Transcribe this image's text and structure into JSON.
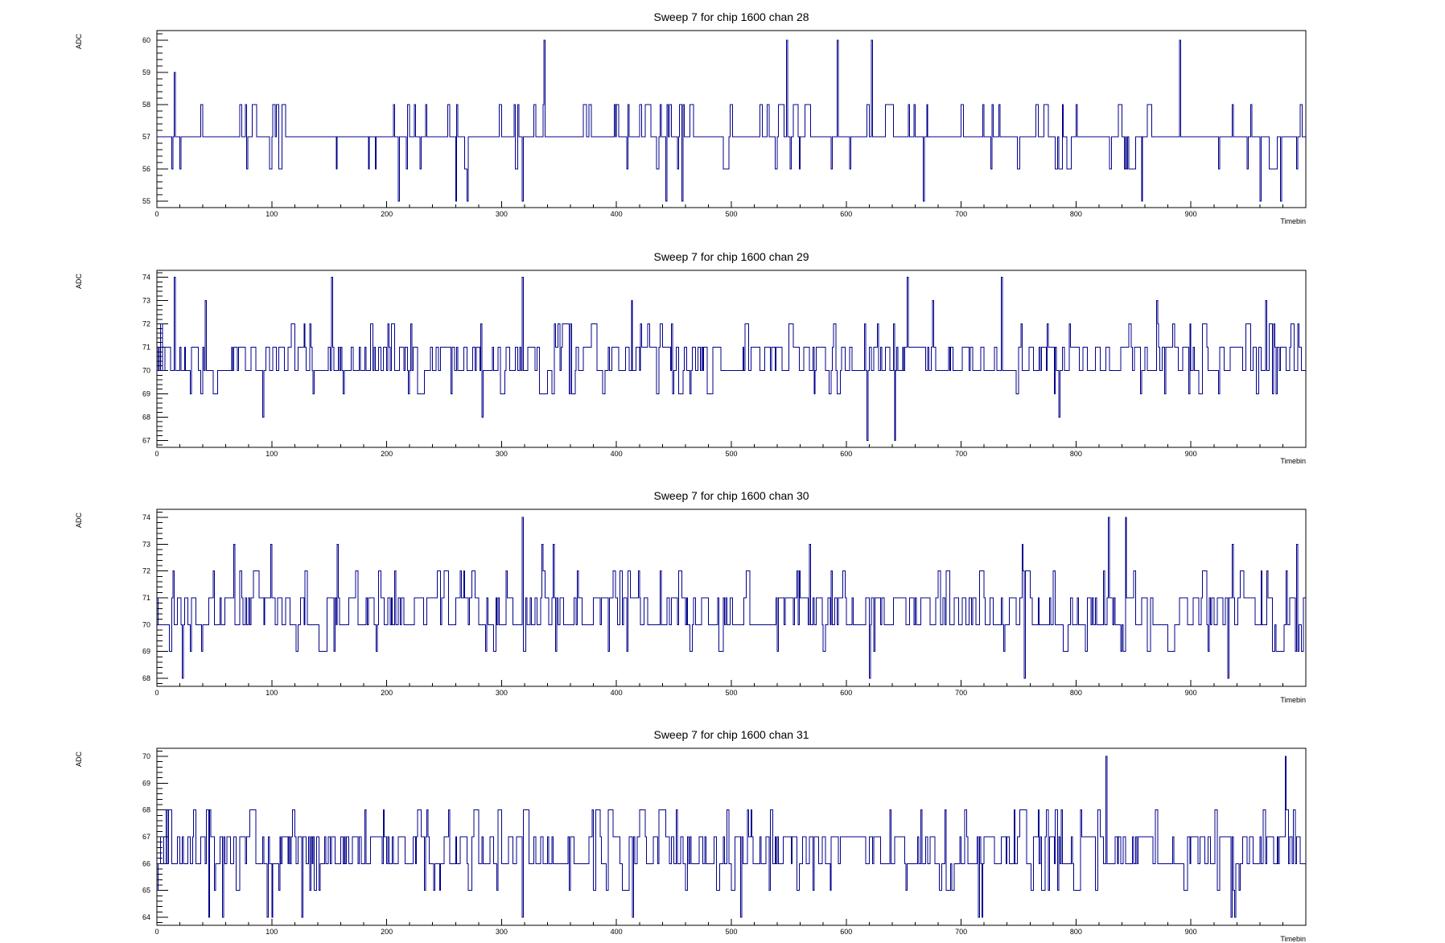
{
  "chart_data": [
    {
      "type": "line",
      "title": "Sweep 7 for chip 1600 chan 28",
      "xlabel": "Timebin",
      "ylabel": "ADC",
      "xlim": [
        0,
        1000
      ],
      "ylim": [
        54.8,
        60.3
      ],
      "x_ticks": [
        0,
        100,
        200,
        300,
        400,
        500,
        600,
        700,
        800,
        900
      ],
      "y_ticks": [
        55,
        56,
        57,
        58,
        59,
        60
      ],
      "baseline": 57,
      "range": [
        55,
        60
      ],
      "spikes": [
        {
          "x": 337,
          "y": 60
        },
        {
          "x": 548,
          "y": 60
        },
        {
          "x": 592,
          "y": 60
        },
        {
          "x": 622,
          "y": 60
        },
        {
          "x": 890,
          "y": 60
        },
        {
          "x": 15,
          "y": 59
        },
        {
          "x": 210,
          "y": 55
        },
        {
          "x": 260,
          "y": 55
        },
        {
          "x": 270,
          "y": 55
        },
        {
          "x": 318,
          "y": 55
        },
        {
          "x": 443,
          "y": 55
        },
        {
          "x": 457,
          "y": 55
        },
        {
          "x": 667,
          "y": 55
        },
        {
          "x": 857,
          "y": 55
        },
        {
          "x": 960,
          "y": 55
        },
        {
          "x": 978,
          "y": 55
        }
      ],
      "series": [
        {
          "color": "#00008b",
          "seed": 28
        }
      ],
      "grid": false
    },
    {
      "type": "line",
      "title": "Sweep 7 for chip 1600 chan 29",
      "xlabel": "Timebin",
      "ylabel": "ADC",
      "xlim": [
        0,
        1000
      ],
      "ylim": [
        66.7,
        74.3
      ],
      "x_ticks": [
        0,
        100,
        200,
        300,
        400,
        500,
        600,
        700,
        800,
        900
      ],
      "y_ticks": [
        67,
        68,
        69,
        70,
        71,
        72,
        73,
        74
      ],
      "baseline": 70.6,
      "range": [
        68,
        72
      ],
      "spikes": [
        {
          "x": 15,
          "y": 74
        },
        {
          "x": 152,
          "y": 74
        },
        {
          "x": 318,
          "y": 74
        },
        {
          "x": 653,
          "y": 74
        },
        {
          "x": 735,
          "y": 74
        },
        {
          "x": 42,
          "y": 73
        },
        {
          "x": 413,
          "y": 73
        },
        {
          "x": 675,
          "y": 73
        },
        {
          "x": 870,
          "y": 73
        },
        {
          "x": 965,
          "y": 73
        },
        {
          "x": 618,
          "y": 67
        },
        {
          "x": 642,
          "y": 67
        },
        {
          "x": 92,
          "y": 68
        },
        {
          "x": 283,
          "y": 68
        },
        {
          "x": 785,
          "y": 68
        }
      ],
      "series": [
        {
          "color": "#00008b",
          "seed": 29
        }
      ],
      "grid": false
    },
    {
      "type": "line",
      "title": "Sweep 7 for chip 1600 chan 30",
      "xlabel": "Timebin",
      "ylabel": "ADC",
      "xlim": [
        0,
        1000
      ],
      "ylim": [
        67.7,
        74.3
      ],
      "x_ticks": [
        0,
        100,
        200,
        300,
        400,
        500,
        600,
        700,
        800,
        900
      ],
      "y_ticks": [
        68,
        69,
        70,
        71,
        72,
        73,
        74
      ],
      "baseline": 70.6,
      "range": [
        69,
        72
      ],
      "spikes": [
        {
          "x": 318,
          "y": 74
        },
        {
          "x": 828,
          "y": 74
        },
        {
          "x": 843,
          "y": 74
        },
        {
          "x": 67,
          "y": 73
        },
        {
          "x": 99,
          "y": 73
        },
        {
          "x": 157,
          "y": 73
        },
        {
          "x": 335,
          "y": 73
        },
        {
          "x": 345,
          "y": 73
        },
        {
          "x": 568,
          "y": 73
        },
        {
          "x": 753,
          "y": 73
        },
        {
          "x": 936,
          "y": 73
        },
        {
          "x": 992,
          "y": 73
        },
        {
          "x": 22,
          "y": 68
        },
        {
          "x": 620,
          "y": 68
        },
        {
          "x": 755,
          "y": 68
        },
        {
          "x": 932,
          "y": 68
        }
      ],
      "series": [
        {
          "color": "#00008b",
          "seed": 30
        }
      ],
      "grid": false
    },
    {
      "type": "line",
      "title": "Sweep 7 for chip 1600 chan 31",
      "xlabel": "Timebin",
      "ylabel": "ADC",
      "xlim": [
        0,
        1000
      ],
      "ylim": [
        63.7,
        70.3
      ],
      "x_ticks": [
        0,
        100,
        200,
        300,
        400,
        500,
        600,
        700,
        800,
        900
      ],
      "y_ticks": [
        64,
        65,
        66,
        67,
        68,
        69,
        70
      ],
      "baseline": 66.7,
      "range": [
        65,
        69
      ],
      "spikes": [
        {
          "x": 826,
          "y": 70
        },
        {
          "x": 982,
          "y": 70
        },
        {
          "x": 45,
          "y": 64
        },
        {
          "x": 57,
          "y": 64
        },
        {
          "x": 96,
          "y": 64
        },
        {
          "x": 100,
          "y": 64
        },
        {
          "x": 126,
          "y": 64
        },
        {
          "x": 318,
          "y": 64
        },
        {
          "x": 414,
          "y": 64
        },
        {
          "x": 508,
          "y": 64
        },
        {
          "x": 715,
          "y": 64
        },
        {
          "x": 718,
          "y": 64
        },
        {
          "x": 935,
          "y": 64
        },
        {
          "x": 938,
          "y": 64
        }
      ],
      "series": [
        {
          "color": "#00008b",
          "seed": 31
        }
      ],
      "grid": false
    }
  ]
}
